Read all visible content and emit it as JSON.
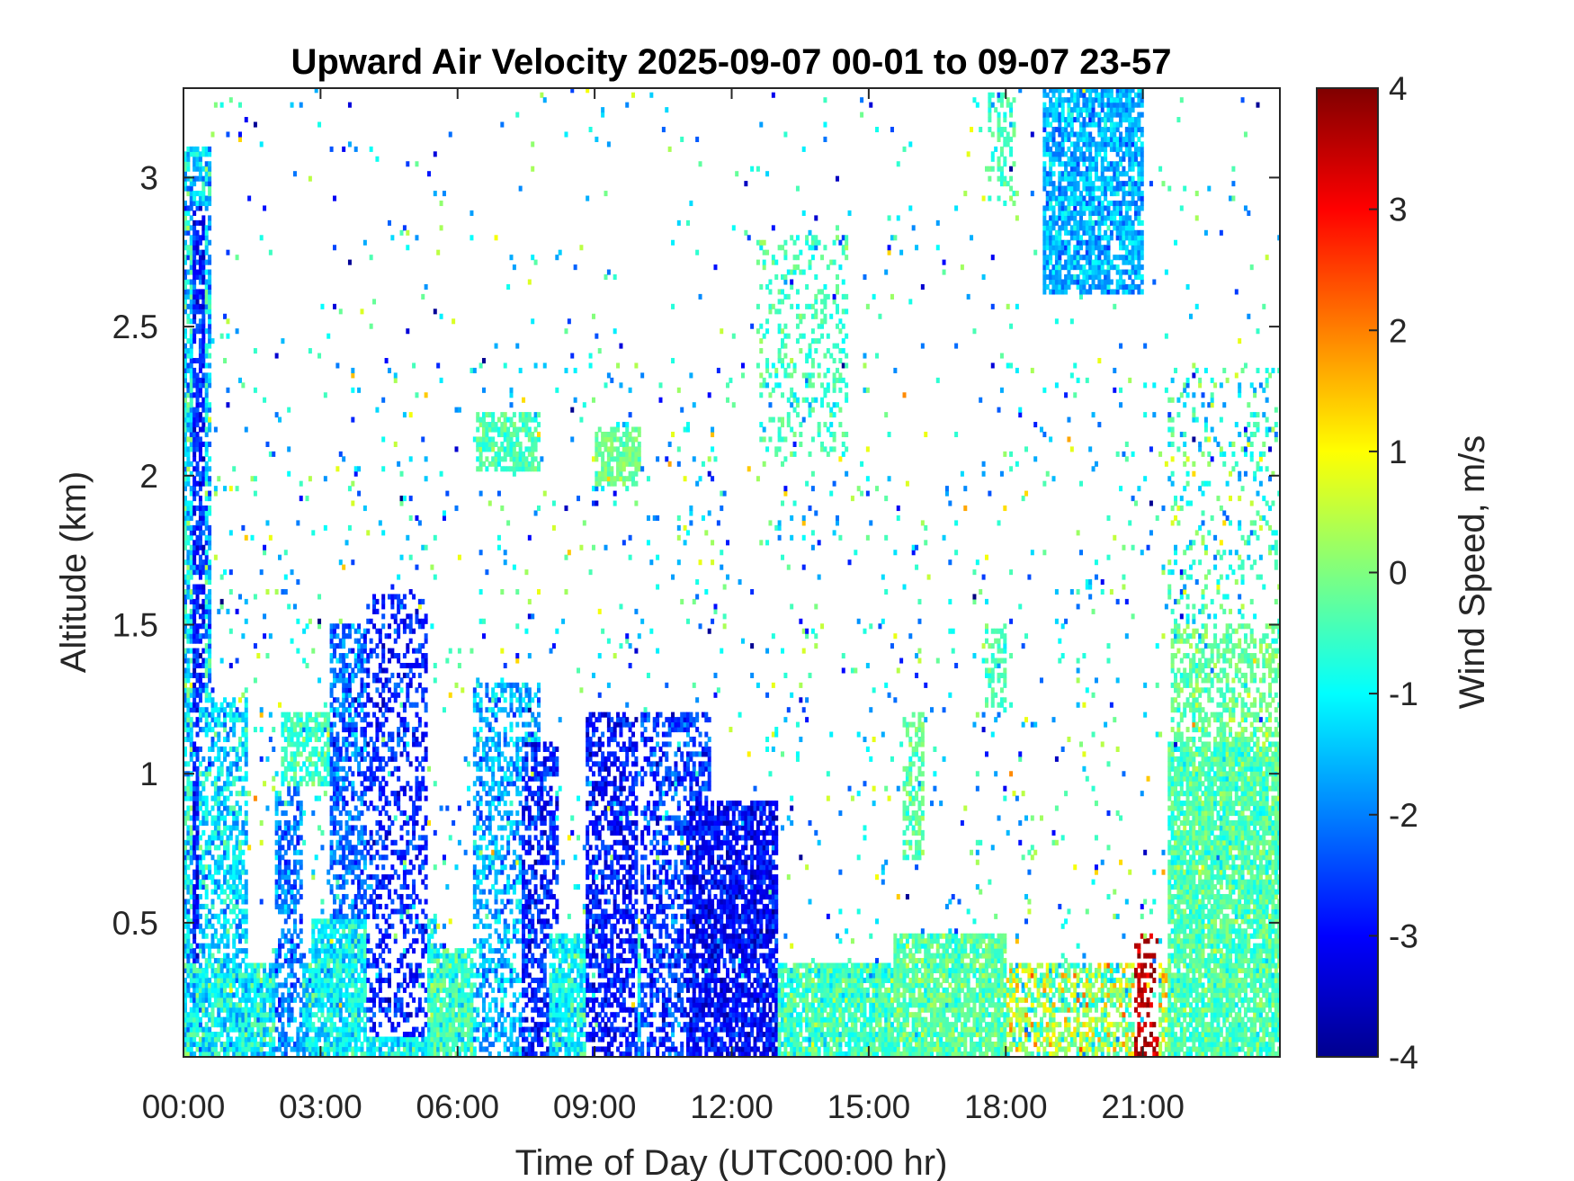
{
  "chart_data": {
    "type": "heatmap",
    "title": "Upward Air Velocity 2025-09-07 00-01 to 09-07 23-57",
    "xlabel": "Time of Day (UTC00:00 hr)",
    "ylabel": "Altitude (km)",
    "colorbar_label": "Wind Speed, m/s",
    "xlim_hours": [
      0,
      24
    ],
    "ylim_km": [
      0.05,
      3.3
    ],
    "clim": [
      -4,
      4
    ],
    "colormap": "jet",
    "grid": false,
    "x_ticks": [
      {
        "value": 0,
        "label": "00:00"
      },
      {
        "value": 3,
        "label": "03:00"
      },
      {
        "value": 6,
        "label": "06:00"
      },
      {
        "value": 9,
        "label": "09:00"
      },
      {
        "value": 12,
        "label": "12:00"
      },
      {
        "value": 15,
        "label": "15:00"
      },
      {
        "value": 18,
        "label": "18:00"
      },
      {
        "value": 21,
        "label": "21:00"
      }
    ],
    "y_ticks": [
      {
        "value": 0.5,
        "label": "0.5"
      },
      {
        "value": 1,
        "label": "1"
      },
      {
        "value": 1.5,
        "label": "1.5"
      },
      {
        "value": 2,
        "label": "2"
      },
      {
        "value": 2.5,
        "label": "2.5"
      },
      {
        "value": 3,
        "label": "3"
      }
    ],
    "colorbar_ticks": [
      {
        "value": 4,
        "label": "4"
      },
      {
        "value": 3,
        "label": "3"
      },
      {
        "value": 2,
        "label": "2"
      },
      {
        "value": 1,
        "label": "1"
      },
      {
        "value": 0,
        "label": "0"
      },
      {
        "value": -1,
        "label": "-1"
      },
      {
        "value": -2,
        "label": "-2"
      },
      {
        "value": -3,
        "label": "-3"
      },
      {
        "value": -4,
        "label": "-4"
      }
    ],
    "regions": [
      {
        "t": [
          0.0,
          0.6
        ],
        "alt": [
          0.05,
          3.1
        ],
        "mean": -1.2,
        "spread": 1.5,
        "density": 0.75
      },
      {
        "t": [
          0.15,
          0.45
        ],
        "alt": [
          0.05,
          2.9
        ],
        "mean": -2.8,
        "spread": 0.9,
        "density": 0.7
      },
      {
        "t": [
          0.0,
          3.0
        ],
        "alt": [
          0.05,
          0.35
        ],
        "mean": -1.0,
        "spread": 1.2,
        "density": 0.85
      },
      {
        "t": [
          0.3,
          1.4
        ],
        "alt": [
          0.35,
          1.25
        ],
        "mean": -1.3,
        "spread": 1.2,
        "density": 0.55
      },
      {
        "t": [
          2.0,
          2.6
        ],
        "alt": [
          0.05,
          0.95
        ],
        "mean": -2.0,
        "spread": 1.0,
        "density": 0.5
      },
      {
        "t": [
          2.1,
          4.0
        ],
        "alt": [
          0.95,
          1.2
        ],
        "mean": -0.6,
        "spread": 0.7,
        "density": 0.7
      },
      {
        "t": [
          2.8,
          5.5
        ],
        "alt": [
          0.05,
          0.5
        ],
        "mean": -1.0,
        "spread": 1.0,
        "density": 0.85
      },
      {
        "t": [
          3.2,
          5.3
        ],
        "alt": [
          0.5,
          1.5
        ],
        "mean": -2.2,
        "spread": 1.1,
        "density": 0.55
      },
      {
        "t": [
          4.0,
          5.3
        ],
        "alt": [
          0.1,
          1.6
        ],
        "mean": -2.8,
        "spread": 0.8,
        "density": 0.35
      },
      {
        "t": [
          5.3,
          7.5
        ],
        "alt": [
          0.05,
          0.4
        ],
        "mean": -0.6,
        "spread": 1.0,
        "density": 0.85
      },
      {
        "t": [
          6.3,
          7.8
        ],
        "alt": [
          0.05,
          1.3
        ],
        "mean": -1.6,
        "spread": 1.1,
        "density": 0.45
      },
      {
        "t": [
          6.4,
          7.8
        ],
        "alt": [
          2.0,
          2.2
        ],
        "mean": -0.4,
        "spread": 0.6,
        "density": 0.7
      },
      {
        "t": [
          7.4,
          8.2
        ],
        "alt": [
          0.05,
          1.1
        ],
        "mean": -2.8,
        "spread": 0.9,
        "density": 0.55
      },
      {
        "t": [
          8.0,
          10.5
        ],
        "alt": [
          0.05,
          0.45
        ],
        "mean": -1.0,
        "spread": 1.0,
        "density": 0.85
      },
      {
        "t": [
          8.8,
          9.9
        ],
        "alt": [
          0.05,
          1.2
        ],
        "mean": -2.9,
        "spread": 0.8,
        "density": 0.55
      },
      {
        "t": [
          9.0,
          10.0
        ],
        "alt": [
          1.95,
          2.15
        ],
        "mean": -0.1,
        "spread": 0.5,
        "density": 0.7
      },
      {
        "t": [
          10.0,
          11.5
        ],
        "alt": [
          0.05,
          1.2
        ],
        "mean": -2.6,
        "spread": 1.0,
        "density": 0.45
      },
      {
        "t": [
          11.0,
          13.0
        ],
        "alt": [
          0.05,
          0.9
        ],
        "mean": -3.0,
        "spread": 0.8,
        "density": 0.75
      },
      {
        "t": [
          12.5,
          14.5
        ],
        "alt": [
          2.05,
          2.8
        ],
        "mean": -0.5,
        "spread": 0.7,
        "density": 0.2
      },
      {
        "t": [
          13.0,
          15.5
        ],
        "alt": [
          0.05,
          0.35
        ],
        "mean": -0.5,
        "spread": 0.9,
        "density": 0.85
      },
      {
        "t": [
          15.5,
          18.0
        ],
        "alt": [
          0.05,
          0.45
        ],
        "mean": -0.3,
        "spread": 0.8,
        "density": 0.85
      },
      {
        "t": [
          15.7,
          16.2
        ],
        "alt": [
          0.7,
          1.2
        ],
        "mean": -0.3,
        "spread": 0.6,
        "density": 0.45
      },
      {
        "t": [
          17.5,
          18.0
        ],
        "alt": [
          1.2,
          1.5
        ],
        "mean": -0.4,
        "spread": 0.6,
        "density": 0.4
      },
      {
        "t": [
          17.6,
          18.2
        ],
        "alt": [
          2.9,
          3.3
        ],
        "mean": -0.5,
        "spread": 0.6,
        "density": 0.35
      },
      {
        "t": [
          18.0,
          21.5
        ],
        "alt": [
          0.05,
          0.35
        ],
        "mean": 0.2,
        "spread": 1.8,
        "density": 0.6
      },
      {
        "t": [
          18.8,
          21.0
        ],
        "alt": [
          2.6,
          3.3
        ],
        "mean": -1.6,
        "spread": 0.9,
        "density": 0.75
      },
      {
        "t": [
          20.8,
          21.3
        ],
        "alt": [
          0.05,
          0.45
        ],
        "mean": 3.5,
        "spread": 0.6,
        "density": 0.35
      },
      {
        "t": [
          21.5,
          24.0
        ],
        "alt": [
          0.05,
          1.1
        ],
        "mean": -0.4,
        "spread": 0.8,
        "density": 0.85
      },
      {
        "t": [
          21.6,
          24.0
        ],
        "alt": [
          1.1,
          1.5
        ],
        "mean": -0.2,
        "spread": 0.7,
        "density": 0.45
      },
      {
        "t": [
          21.5,
          24.0
        ],
        "alt": [
          1.5,
          2.35
        ],
        "mean": -0.6,
        "spread": 1.5,
        "density": 0.12
      }
    ],
    "scatter_density": 0.03
  }
}
